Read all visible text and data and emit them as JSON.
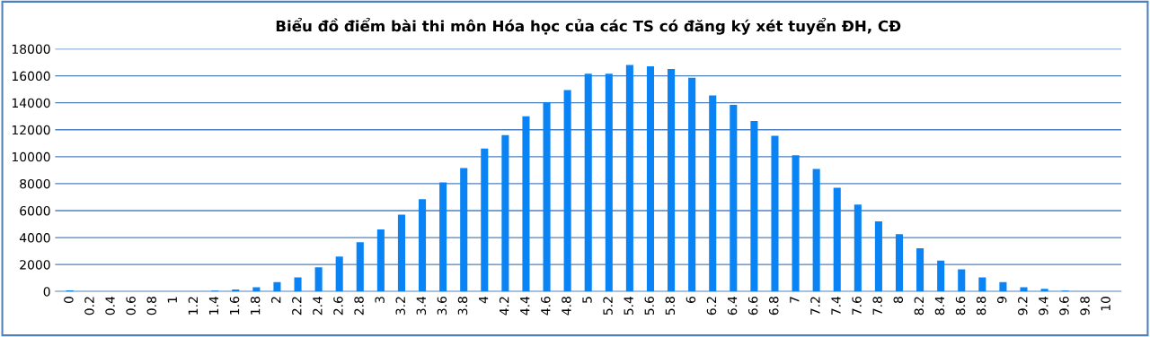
{
  "chart_data": {
    "type": "bar",
    "title": "Biểu đồ điểm bài thi môn Hóa học của các TS có đăng ký xét tuyển ĐH, CĐ",
    "categories": [
      "0",
      "0.2",
      "0.4",
      "0.6",
      "0.8",
      "1",
      "1.2",
      "1.4",
      "1.6",
      "1.8",
      "2",
      "2.2",
      "2.4",
      "2.6",
      "2.8",
      "3",
      "3.2",
      "3.4",
      "3.6",
      "3.8",
      "4",
      "4.2",
      "4.4",
      "4.6",
      "4.8",
      "5",
      "5.2",
      "5.4",
      "5.6",
      "5.8",
      "6",
      "6.2",
      "6.4",
      "6.6",
      "6.8",
      "7",
      "7.2",
      "7.4",
      "7.6",
      "7.8",
      "8",
      "8.2",
      "8.4",
      "8.6",
      "8.8",
      "9",
      "9.2",
      "9.4",
      "9.6",
      "9.8",
      "10"
    ],
    "values": [
      80,
      0,
      0,
      0,
      0,
      0,
      0,
      60,
      150,
      320,
      700,
      1050,
      1800,
      2600,
      3650,
      4600,
      5700,
      6850,
      8100,
      9150,
      10600,
      11600,
      13000,
      14050,
      14950,
      16150,
      16150,
      16800,
      16700,
      16500,
      15850,
      14550,
      13850,
      12650,
      11550,
      10100,
      9100,
      7700,
      6450,
      5200,
      4250,
      3200,
      2300,
      1650,
      1050,
      700,
      320,
      200,
      60,
      0,
      0
    ],
    "color": "#0a84f5",
    "ylim": [
      0,
      18000
    ],
    "yticks": [
      0,
      2000,
      4000,
      6000,
      8000,
      10000,
      12000,
      14000,
      16000,
      18000
    ],
    "grid": "y"
  }
}
